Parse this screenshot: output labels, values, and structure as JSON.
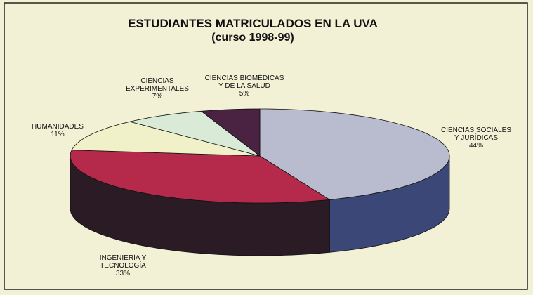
{
  "chart_data": {
    "type": "pie3d",
    "title": "ESTUDIANTES MATRICULADOS  EN LA UVA",
    "subtitle": "(curso 1998-99)",
    "categories": [
      "CIENCIAS SOCIALES\nY JURÍDICAS",
      "INGENIERÍA Y\nTECNOLOGÍA",
      "HUMANIDADES",
      "CIENCIAS\nEXPERIMENTALES",
      "CIENCIAS BIOMÉDICAS\nY DE LA SALUD"
    ],
    "values": [
      44,
      33,
      11,
      7,
      5
    ],
    "value_labels": [
      "44%",
      "33%",
      "11%",
      "7%",
      "5%"
    ],
    "colors": [
      "#b9bccf",
      "#b52a4b",
      "#f1f1c9",
      "#d9ebd6",
      "#4a2242"
    ],
    "side_colors": [
      "#3b4877",
      "#2b1b24",
      "#8d8d6e",
      "#7c8c7a",
      "#24101f"
    ]
  }
}
